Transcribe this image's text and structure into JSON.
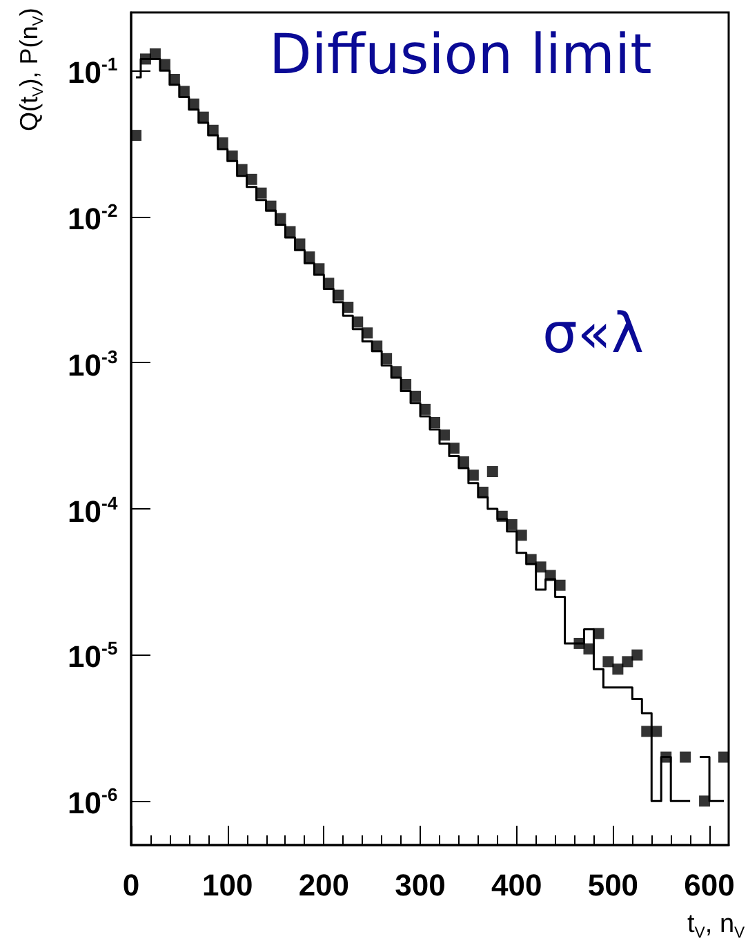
{
  "chart_data": {
    "type": "scatter",
    "xlabel": "t$_{V}$, n$_{V}$",
    "ylabel": "Q(t$_{V}$), P(n$_{V}$)",
    "log": "y",
    "grid": false,
    "xlim": [
      0,
      620
    ],
    "xticks": [
      0,
      100,
      200,
      300,
      400,
      500,
      600
    ],
    "ylim": [
      5e-07,
      0.25
    ],
    "yticks": [
      {
        "value": 1e-06,
        "label": "10$^{-6}$"
      },
      {
        "value": 1e-05,
        "label": "10$^{-5}$"
      },
      {
        "value": 0.0001,
        "label": "10$^{-4}$"
      },
      {
        "value": 0.001,
        "label": "10$^{-3}$"
      },
      {
        "value": 0.01,
        "label": "10$^{-2}$"
      },
      {
        "value": 0.1,
        "label": "10$^{-1}$"
      }
    ],
    "annotations": [
      "Diffusion limit",
      "σ«λ"
    ],
    "series": [
      {
        "type": "step",
        "color": "#000000",
        "marker": "none",
        "x": [
          5,
          15,
          25,
          35,
          45,
          55,
          65,
          75,
          85,
          95,
          105,
          115,
          125,
          135,
          145,
          155,
          165,
          175,
          185,
          195,
          205,
          215,
          225,
          235,
          245,
          255,
          265,
          275,
          285,
          295,
          305,
          315,
          325,
          335,
          345,
          355,
          365,
          375,
          385,
          395,
          405,
          415,
          425,
          435,
          445,
          455,
          465,
          475,
          485,
          495,
          505,
          515,
          525,
          535,
          545,
          555,
          565,
          575,
          585,
          595,
          605,
          615
        ],
        "values": [
          0.09,
          0.12,
          0.12,
          0.1,
          0.08,
          0.066,
          0.054,
          0.044,
          0.036,
          0.029,
          0.024,
          0.019,
          0.016,
          0.013,
          0.011,
          0.0088,
          0.0072,
          0.0059,
          0.0048,
          0.004,
          0.0032,
          0.0026,
          0.0021,
          0.0017,
          0.0014,
          0.0012,
          0.00096,
          0.00079,
          0.00064,
          0.00053,
          0.00043,
          0.00035,
          0.00028,
          0.00023,
          0.00019,
          0.00015,
          0.00012,
          0.0001,
          8.5e-05,
          7e-05,
          5e-05,
          4.2e-05,
          2.8e-05,
          3.3e-05,
          2.5e-05,
          1.2e-05,
          1.2e-05,
          1.5e-05,
          8e-06,
          6e-06,
          6e-06,
          6e-06,
          5e-06,
          4e-06,
          1e-06,
          2e-06,
          1e-06,
          1e-06,
          null,
          2e-06,
          1e-06,
          1e-06
        ]
      },
      {
        "color": "#000000",
        "marker": "square",
        "x": [
          5,
          15,
          25,
          35,
          45,
          55,
          65,
          75,
          85,
          95,
          105,
          115,
          125,
          135,
          145,
          155,
          165,
          175,
          185,
          195,
          205,
          215,
          225,
          235,
          245,
          255,
          265,
          275,
          285,
          295,
          305,
          315,
          325,
          335,
          345,
          355,
          365,
          375,
          385,
          395,
          405,
          415,
          425,
          435,
          445,
          455,
          465,
          475,
          485,
          495,
          505,
          515,
          525,
          535,
          545,
          555,
          575,
          595,
          615
        ],
        "values": [
          0.036,
          0.12,
          0.13,
          0.11,
          0.087,
          0.072,
          0.059,
          0.048,
          0.039,
          0.032,
          0.026,
          0.021,
          0.018,
          0.0145,
          0.0118,
          0.0097,
          0.0079,
          0.0065,
          0.0053,
          0.0044,
          0.0035,
          0.0029,
          0.0024,
          0.0019,
          0.0016,
          0.0013,
          0.00107,
          0.00087,
          0.00071,
          0.00059,
          0.00048,
          0.00039,
          0.00032,
          0.00026,
          0.00021,
          0.00017,
          0.00013,
          0.00018,
          8.9e-05,
          7.8e-05,
          6.6e-05,
          4.5e-05,
          4e-05,
          3.5e-05,
          3e-05,
          null,
          1.2e-05,
          1.1e-05,
          1.4e-05,
          9e-06,
          8e-06,
          9e-06,
          1e-05,
          3e-06,
          3e-06,
          2e-06,
          2e-06,
          1e-06,
          2e-06
        ]
      }
    ]
  }
}
